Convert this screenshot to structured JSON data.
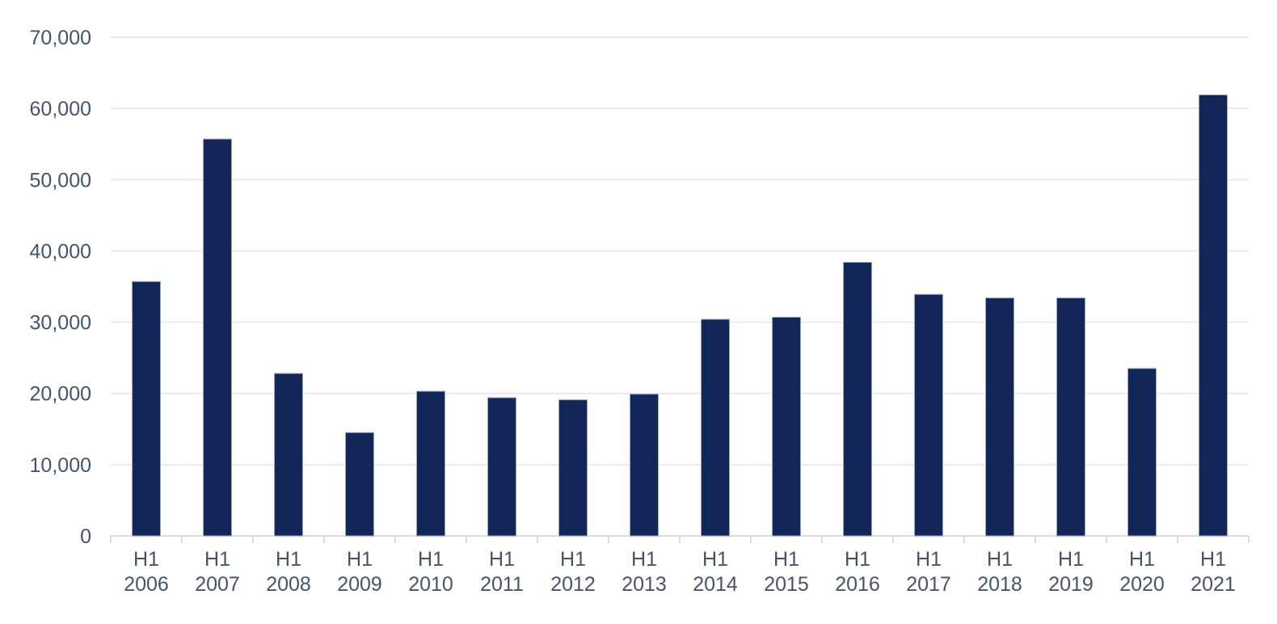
{
  "chart_data": {
    "type": "bar",
    "title": "",
    "xlabel": "",
    "ylabel": "",
    "legend": "none",
    "grid": "horizontal",
    "categories": [
      "H1 2006",
      "H1 2007",
      "H1 2008",
      "H1 2009",
      "H1 2010",
      "H1 2011",
      "H1 2012",
      "H1 2013",
      "H1 2014",
      "H1 2015",
      "H1 2016",
      "H1 2017",
      "H1 2018",
      "H1 2019",
      "H1 2020",
      "H1 2021"
    ],
    "values": [
      35700,
      55700,
      22800,
      14500,
      20300,
      19400,
      19100,
      19900,
      30400,
      30700,
      38400,
      33900,
      33400,
      33400,
      23500,
      61900
    ],
    "ylim": [
      0,
      70000
    ],
    "ytick_step": 10000,
    "ytick_labels": [
      "0",
      "10,000",
      "20,000",
      "30,000",
      "40,000",
      "50,000",
      "60,000",
      "70,000"
    ],
    "colors": {
      "bar_fill": "#12265A",
      "bar_outline": "#9AA9C4",
      "axis_text": "#44546A",
      "gridline": "#E6E9F1",
      "axis_line": "#D9DCE4",
      "background": "#FFFFFF"
    }
  }
}
